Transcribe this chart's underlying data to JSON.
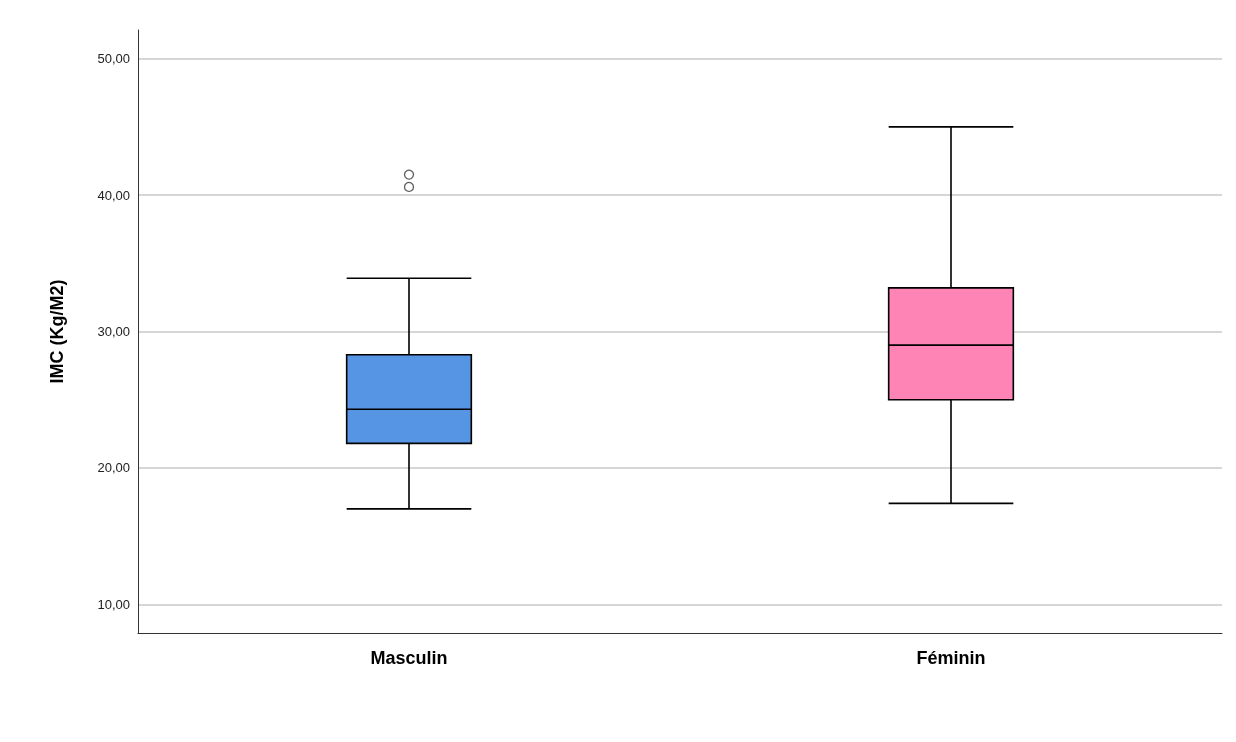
{
  "chart_data": {
    "type": "box",
    "ylabel": "IMC (Kg/M2)",
    "categories": [
      "Masculin",
      "Féminin"
    ],
    "colors": [
      "#5595e3",
      "#fe84b5"
    ],
    "boxes": [
      {
        "low": 17.0,
        "q1": 21.8,
        "median": 24.3,
        "q3": 28.3,
        "high": 33.9,
        "outliers": [
          40.6,
          41.5
        ]
      },
      {
        "low": 17.4,
        "q1": 25.0,
        "median": 29.0,
        "q3": 33.2,
        "high": 45.0
      }
    ],
    "ylim": [
      7.9,
      52.1
    ],
    "yticks": [
      {
        "value": 10,
        "label": "10,00"
      },
      {
        "value": 20,
        "label": "20,00"
      },
      {
        "value": 30,
        "label": "30,00"
      },
      {
        "value": 40,
        "label": "40,00"
      },
      {
        "value": 50,
        "label": "50,00"
      }
    ],
    "grid": "y"
  }
}
